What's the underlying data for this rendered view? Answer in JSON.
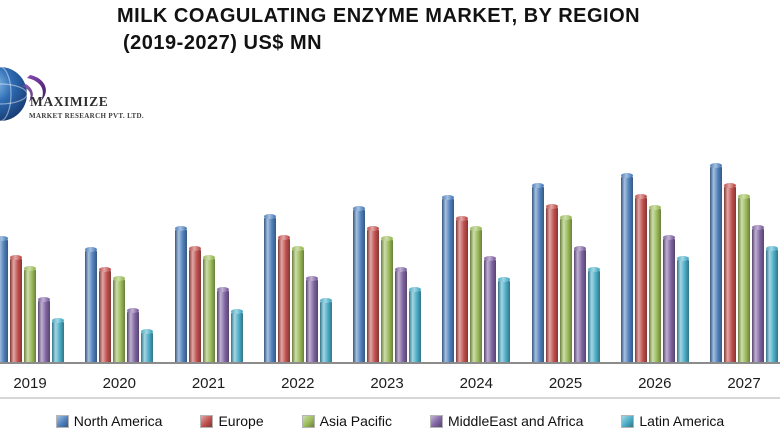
{
  "title": {
    "line1": "MILK COAGULATING ENZYME MARKET, BY REGION",
    "line2": "(2019-2027) US$ MN"
  },
  "logo": {
    "brand": "MAXIMIZE",
    "tagline": "MARKET RESEARCH PVT. LTD.",
    "globe_color": "#2f6db5",
    "swoosh_color": "#5b2f8e"
  },
  "axis": {
    "baseline_color": "#8c8c8c"
  },
  "chart_data": {
    "type": "bar",
    "title": "MILK COAGULATING ENZYME MARKET, BY REGION (2019-2027) US$ MN",
    "xlabel": "",
    "ylabel": "",
    "categories": [
      "2019",
      "2020",
      "2021",
      "2022",
      "2023",
      "2024",
      "2025",
      "2026",
      "2027"
    ],
    "series": [
      {
        "name": "North America",
        "color": "#4F81BD",
        "values": [
          124,
          113,
          134,
          146,
          154,
          165,
          177,
          187,
          197
        ]
      },
      {
        "name": "Europe",
        "color": "#C0504D",
        "values": [
          105,
          93,
          114,
          125,
          134,
          144,
          156,
          166,
          177
        ]
      },
      {
        "name": "Asia Pacific",
        "color": "#9BBB59",
        "values": [
          94,
          84,
          105,
          114,
          124,
          134,
          145,
          155,
          166
        ]
      },
      {
        "name": "MiddleEast and Africa",
        "color": "#8064A2",
        "values": [
          63,
          52,
          73,
          84,
          93,
          104,
          114,
          125,
          135
        ]
      },
      {
        "name": "Latin America",
        "color": "#4BACC6",
        "values": [
          42,
          31,
          51,
          62,
          73,
          83,
          93,
          104,
          114
        ]
      }
    ],
    "value_unit": "relative bar height in px; no numeric y-axis scale shown in image",
    "ylim": [
      0,
      212
    ],
    "y_axis_visible": false,
    "gridlines": false,
    "legend_position": "bottom"
  }
}
